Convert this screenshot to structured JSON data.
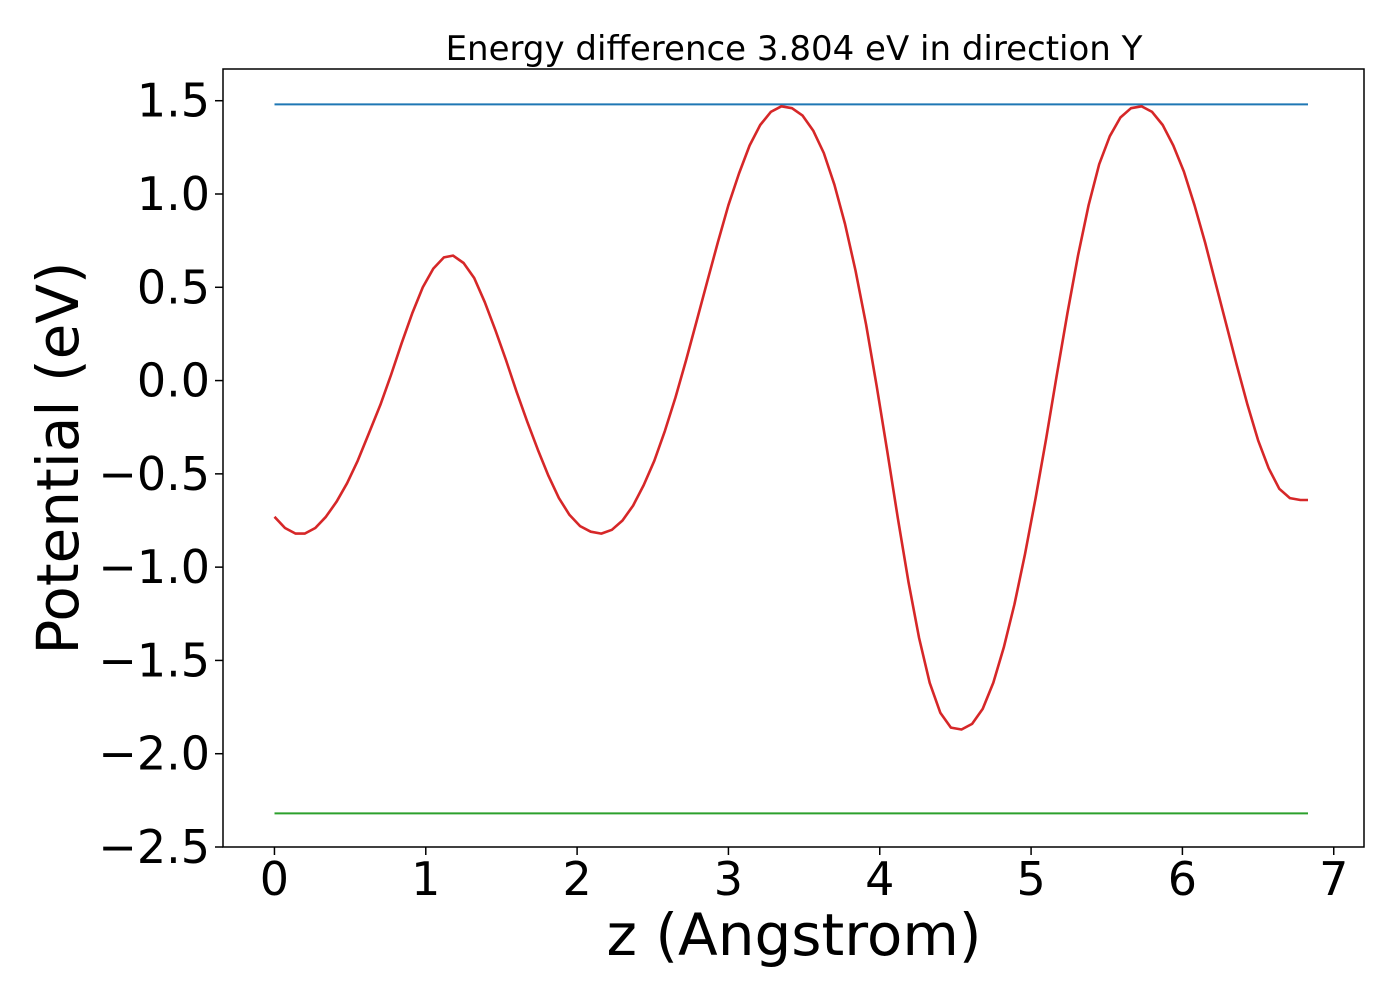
{
  "chart_data": {
    "type": "line",
    "title": "Energy difference 3.804 eV in direction Y",
    "xlabel": "z (Angstrom)",
    "ylabel": "Potential (eV)",
    "xlim": [
      -0.34,
      7.2
    ],
    "ylim": [
      -2.5,
      1.67
    ],
    "xticks": [
      0,
      1,
      2,
      3,
      4,
      5,
      6,
      7
    ],
    "xtick_labels": [
      "0",
      "1",
      "2",
      "3",
      "4",
      "5",
      "6",
      "7"
    ],
    "yticks": [
      -2.5,
      -2.0,
      -1.5,
      -1.0,
      -0.5,
      0.0,
      0.5,
      1.0,
      1.5
    ],
    "ytick_labels": [
      "−2.5",
      "−2.0",
      "−1.5",
      "−1.0",
      "−0.5",
      "0.0",
      "0.5",
      "1.0",
      "1.5"
    ],
    "grid": false,
    "legend": false,
    "series": [
      {
        "color": "#1f77b4",
        "x": [
          0.0,
          6.83
        ],
        "y": [
          1.48,
          1.48
        ]
      },
      {
        "color": "#2ca02c",
        "x": [
          0.0,
          6.83
        ],
        "y": [
          -2.32,
          -2.32
        ]
      },
      {
        "color": "#d62728",
        "x": [
          0.0,
          0.07,
          0.14,
          0.2,
          0.27,
          0.34,
          0.41,
          0.48,
          0.55,
          0.62,
          0.7,
          0.77,
          0.84,
          0.91,
          0.98,
          1.05,
          1.12,
          1.18,
          1.25,
          1.32,
          1.39,
          1.46,
          1.53,
          1.6,
          1.67,
          1.74,
          1.81,
          1.88,
          1.95,
          2.02,
          2.09,
          2.16,
          2.23,
          2.3,
          2.37,
          2.44,
          2.51,
          2.58,
          2.65,
          2.72,
          2.79,
          2.86,
          2.93,
          3.0,
          3.07,
          3.14,
          3.21,
          3.28,
          3.35,
          3.42,
          3.49,
          3.56,
          3.63,
          3.7,
          3.77,
          3.84,
          3.91,
          3.98,
          4.05,
          4.12,
          4.19,
          4.26,
          4.33,
          4.4,
          4.47,
          4.54,
          4.61,
          4.68,
          4.75,
          4.82,
          4.89,
          4.96,
          5.03,
          5.1,
          5.17,
          5.24,
          5.31,
          5.38,
          5.45,
          5.52,
          5.59,
          5.66,
          5.73,
          5.8,
          5.87,
          5.94,
          6.01,
          6.08,
          6.15,
          6.22,
          6.29,
          6.36,
          6.43,
          6.5,
          6.57,
          6.64,
          6.71,
          6.78,
          6.83
        ],
        "y": [
          -0.73,
          -0.79,
          -0.82,
          -0.82,
          -0.79,
          -0.73,
          -0.65,
          -0.55,
          -0.43,
          -0.29,
          -0.13,
          0.03,
          0.2,
          0.36,
          0.5,
          0.6,
          0.66,
          0.67,
          0.63,
          0.55,
          0.42,
          0.27,
          0.11,
          -0.06,
          -0.22,
          -0.37,
          -0.51,
          -0.63,
          -0.72,
          -0.78,
          -0.81,
          -0.82,
          -0.8,
          -0.75,
          -0.67,
          -0.56,
          -0.43,
          -0.27,
          -0.09,
          0.11,
          0.32,
          0.53,
          0.74,
          0.94,
          1.11,
          1.26,
          1.37,
          1.44,
          1.47,
          1.46,
          1.42,
          1.34,
          1.22,
          1.05,
          0.84,
          0.59,
          0.3,
          -0.03,
          -0.38,
          -0.74,
          -1.08,
          -1.38,
          -1.62,
          -1.78,
          -1.86,
          -1.87,
          -1.84,
          -1.76,
          -1.62,
          -1.43,
          -1.2,
          -0.93,
          -0.63,
          -0.31,
          0.03,
          0.36,
          0.67,
          0.94,
          1.16,
          1.31,
          1.41,
          1.46,
          1.47,
          1.44,
          1.37,
          1.26,
          1.12,
          0.94,
          0.74,
          0.52,
          0.3,
          0.08,
          -0.13,
          -0.32,
          -0.47,
          -0.58,
          -0.63,
          -0.64,
          -0.64
        ]
      }
    ]
  }
}
